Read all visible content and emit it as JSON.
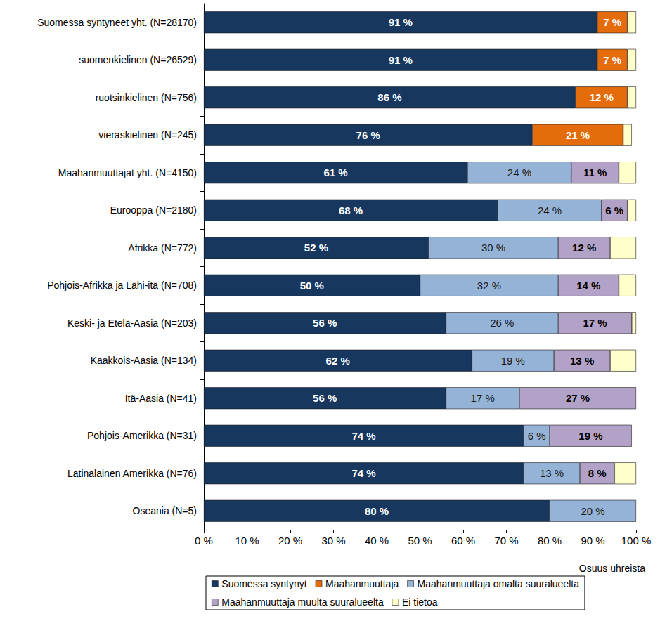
{
  "chart_data": {
    "type": "bar",
    "orientation": "horizontal",
    "stacked": true,
    "data_labels": true,
    "grid": false,
    "legend": "bottom",
    "x_label": "Osuus uhreista",
    "categories": [
      "Suomessa syntyneet yht. (N=28170)",
      "suomenkielinen (N=26529)",
      "ruotsinkielinen (N=756)",
      "vieraskielinen (N=245)",
      "Maahanmuuttajat yht. (N=4150)",
      "Eurooppa (N=2180)",
      "Afrikka (N=772)",
      "Pohjois-Afrikka ja Lähi-itä (N=708)",
      "Keski- ja Etelä-Aasia (N=203)",
      "Kaakkois-Aasia (N=134)",
      "Itä-Aasia (N=41)",
      "Pohjois-Amerikka (N=31)",
      "Latinalainen Amerikka (N=76)",
      "Oseania (N=5)"
    ],
    "xlim": [
      0,
      100
    ],
    "xticks": [
      {
        "value": 0,
        "label": "0 %"
      },
      {
        "value": 10,
        "label": "10 %"
      },
      {
        "value": 20,
        "label": "20 %"
      },
      {
        "value": 30,
        "label": "30 %"
      },
      {
        "value": 40,
        "label": "40 %"
      },
      {
        "value": 50,
        "label": "50 %"
      },
      {
        "value": 60,
        "label": "60 %"
      },
      {
        "value": 70,
        "label": "70 %"
      },
      {
        "value": 80,
        "label": "80 %"
      },
      {
        "value": 90,
        "label": "90 %"
      },
      {
        "value": 100,
        "label": "100 %"
      }
    ],
    "series": [
      {
        "name": "Suomessa syntynyt",
        "color": "#17375e",
        "values": [
          91,
          91,
          86,
          76,
          61,
          68,
          52,
          50,
          56,
          62,
          56,
          74,
          74,
          80
        ],
        "value_labels": [
          "91 %",
          "91 %",
          "86 %",
          "76 %",
          "61 %",
          "68 %",
          "52 %",
          "50 %",
          "56 %",
          "62 %",
          "56 %",
          "74 %",
          "74 %",
          "80 %"
        ]
      },
      {
        "name": "Maahanmuuttaja",
        "color": "#e46c0a",
        "values": [
          7,
          7,
          12,
          21,
          null,
          null,
          null,
          null,
          null,
          null,
          null,
          null,
          null,
          null
        ],
        "value_labels": [
          "7 %",
          "7 %",
          "12 %",
          "21 %",
          null,
          null,
          null,
          null,
          null,
          null,
          null,
          null,
          null,
          null
        ]
      },
      {
        "name": "Maahanmuuttaja omalta suuralueelta",
        "color": "#95b3d7",
        "values": [
          null,
          null,
          null,
          null,
          24,
          24,
          30,
          32,
          26,
          19,
          17,
          6,
          13,
          20
        ],
        "value_labels": [
          null,
          null,
          null,
          null,
          "24 %",
          "24 %",
          "30 %",
          "32 %",
          "26 %",
          "19 %",
          "17 %",
          "6 %",
          "13 %",
          "20 %"
        ]
      },
      {
        "name": "Maahanmuuttaja muulta suuralueelta",
        "color": "#b3a2c7",
        "values": [
          null,
          null,
          null,
          null,
          11,
          6,
          12,
          14,
          17,
          13,
          27,
          19,
          8,
          null
        ],
        "value_labels": [
          null,
          null,
          null,
          null,
          "11 %",
          "6 %",
          "12 %",
          "14 %",
          "17 %",
          "13 %",
          "27 %",
          "19 %",
          "8 %",
          null
        ]
      },
      {
        "name": "Ei tietoa",
        "color": "#ffffcc",
        "data_labels": false,
        "values": [
          2,
          2,
          2,
          2,
          4,
          2,
          6,
          4,
          1,
          6,
          null,
          null,
          5,
          null
        ]
      }
    ]
  }
}
